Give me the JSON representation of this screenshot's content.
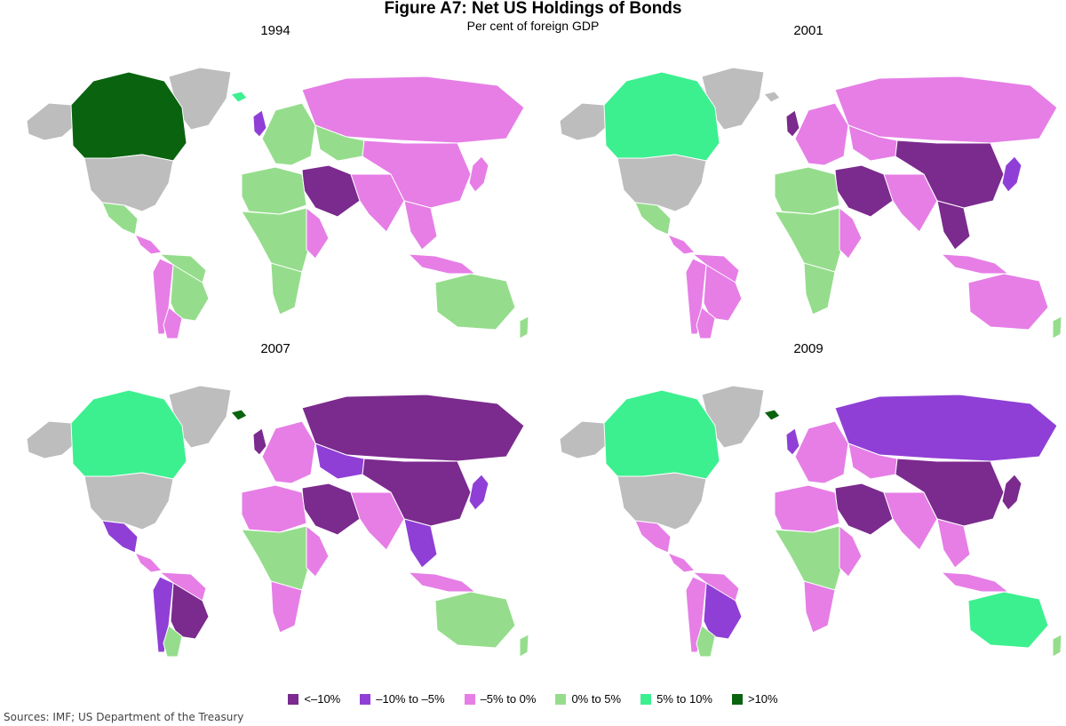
{
  "title": "Figure A7: Net US Holdings of Bonds",
  "subtitle": "Per cent of foreign GDP",
  "source": "Sources:  IMF; US Department of the Treasury",
  "legend": [
    {
      "key": "lt_m10",
      "label": "<–10%",
      "color": "#7b2a8e"
    },
    {
      "key": "m10_m5",
      "label": "–10% to –5%",
      "color": "#8f3fd6"
    },
    {
      "key": "m5_0",
      "label": "–5% to 0%",
      "color": "#e67ee6"
    },
    {
      "key": "0_5",
      "label": "0% to 5%",
      "color": "#95dd8c"
    },
    {
      "key": "5_10",
      "label": "5% to 10%",
      "color": "#3cf08f"
    },
    {
      "key": "gt_10",
      "label": ">10%",
      "color": "#0a640f"
    }
  ],
  "nodata_color": "#bdbdbd",
  "panels": [
    {
      "year": "1994",
      "regions": {
        "canada": "gt_10",
        "greenland": "nodata",
        "alaska": "nodata",
        "usa": "nodata",
        "mexico": "0_5",
        "central_america": "m5_0",
        "south_america": "0_5",
        "brazil": "0_5",
        "andes": "m5_0",
        "southern_cone": "m5_0",
        "europe": "0_5",
        "uk": "m10_m5",
        "iceland": "5_10",
        "russia": "m5_0",
        "kazakhstan": "0_5",
        "middle_east": "lt_m10",
        "north_africa": "0_5",
        "africa": "0_5",
        "east_africa": "m5_0",
        "southern_africa": "0_5",
        "south_asia": "m5_0",
        "china": "m5_0",
        "se_asia": "m5_0",
        "japan": "m5_0",
        "indonesia": "m5_0",
        "australia": "0_5",
        "nz": "0_5"
      }
    },
    {
      "year": "2001",
      "regions": {
        "canada": "5_10",
        "greenland": "nodata",
        "alaska": "nodata",
        "usa": "nodata",
        "mexico": "0_5",
        "central_america": "m5_0",
        "south_america": "m5_0",
        "brazil": "m5_0",
        "andes": "m5_0",
        "southern_cone": "m5_0",
        "europe": "m5_0",
        "uk": "lt_m10",
        "iceland": "nodata",
        "russia": "m5_0",
        "kazakhstan": "m5_0",
        "middle_east": "lt_m10",
        "north_africa": "0_5",
        "africa": "0_5",
        "east_africa": "m5_0",
        "southern_africa": "0_5",
        "south_asia": "m5_0",
        "china": "lt_m10",
        "se_asia": "lt_m10",
        "japan": "m10_m5",
        "indonesia": "m5_0",
        "australia": "m5_0",
        "nz": "0_5"
      }
    },
    {
      "year": "2007",
      "regions": {
        "canada": "5_10",
        "greenland": "nodata",
        "alaska": "nodata",
        "usa": "nodata",
        "mexico": "m10_m5",
        "central_america": "m5_0",
        "south_america": "m5_0",
        "brazil": "lt_m10",
        "andes": "m10_m5",
        "southern_cone": "0_5",
        "europe": "m5_0",
        "uk": "lt_m10",
        "iceland": "gt_10",
        "russia": "lt_m10",
        "kazakhstan": "m10_m5",
        "middle_east": "lt_m10",
        "north_africa": "m5_0",
        "africa": "0_5",
        "east_africa": "m5_0",
        "southern_africa": "m5_0",
        "south_asia": "m5_0",
        "china": "lt_m10",
        "se_asia": "m10_m5",
        "japan": "m10_m5",
        "indonesia": "m5_0",
        "australia": "0_5",
        "nz": "0_5"
      }
    },
    {
      "year": "2009",
      "regions": {
        "canada": "5_10",
        "greenland": "nodata",
        "alaska": "nodata",
        "usa": "nodata",
        "mexico": "m5_0",
        "central_america": "m5_0",
        "south_america": "m5_0",
        "brazil": "m10_m5",
        "andes": "m5_0",
        "southern_cone": "0_5",
        "europe": "m5_0",
        "uk": "m10_m5",
        "iceland": "gt_10",
        "russia": "m10_m5",
        "kazakhstan": "m5_0",
        "middle_east": "lt_m10",
        "north_africa": "m5_0",
        "africa": "0_5",
        "east_africa": "m5_0",
        "southern_africa": "m5_0",
        "south_asia": "m5_0",
        "china": "lt_m10",
        "se_asia": "m5_0",
        "japan": "lt_m10",
        "indonesia": "m5_0",
        "australia": "5_10",
        "nz": "0_5"
      }
    }
  ]
}
